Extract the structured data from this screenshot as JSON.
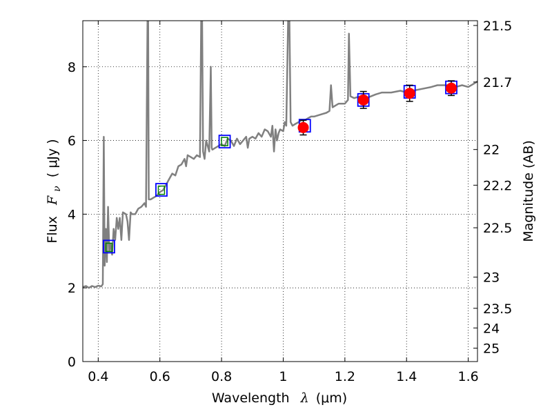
{
  "chart_data": {
    "type": "line",
    "title": "",
    "xlabel": {
      "text": "Wavelength",
      "math": "λ",
      "unit": "(μm)"
    },
    "ylabel": {
      "text": "Flux",
      "math": "F",
      "sub": "ν",
      "unit": "( μJy )"
    },
    "y2label": "Magnitude (AB)",
    "xlim": [
      0.35,
      1.63
    ],
    "ylim": [
      0,
      9.25
    ],
    "grid": true,
    "x_ticks": [
      {
        "value": 0.4,
        "label": "0.4"
      },
      {
        "value": 0.6,
        "label": "0.6"
      },
      {
        "value": 0.8,
        "label": "0.8"
      },
      {
        "value": 1.0,
        "label": "1"
      },
      {
        "value": 1.2,
        "label": "1.2"
      },
      {
        "value": 1.4,
        "label": "1.4"
      },
      {
        "value": 1.6,
        "label": "1.6"
      }
    ],
    "y_ticks": [
      {
        "value": 0,
        "label": "0"
      },
      {
        "value": 2,
        "label": "2"
      },
      {
        "value": 4,
        "label": "4"
      },
      {
        "value": 6,
        "label": "6"
      },
      {
        "value": 8,
        "label": "8"
      }
    ],
    "y2_ticks": [
      {
        "value": 21.5,
        "label": "21.5"
      },
      {
        "value": 21.7,
        "label": "21.7"
      },
      {
        "value": 22.0,
        "label": "22"
      },
      {
        "value": 22.2,
        "label": "22.2"
      },
      {
        "value": 22.5,
        "label": "22.5"
      },
      {
        "value": 23.0,
        "label": "23"
      },
      {
        "value": 23.5,
        "label": "23.5"
      },
      {
        "value": 24.0,
        "label": "24"
      },
      {
        "value": 25.0,
        "label": "25"
      }
    ],
    "series": [
      {
        "kind": "spectrum",
        "color": "#808080",
        "points": [
          [
            0.35,
            2.02
          ],
          [
            0.36,
            2.05
          ],
          [
            0.37,
            2.0
          ],
          [
            0.38,
            2.05
          ],
          [
            0.39,
            2.02
          ],
          [
            0.4,
            2.06
          ],
          [
            0.41,
            2.04
          ],
          [
            0.415,
            2.1
          ],
          [
            0.418,
            6.1
          ],
          [
            0.421,
            2.6
          ],
          [
            0.425,
            3.6
          ],
          [
            0.428,
            2.7
          ],
          [
            0.432,
            4.2
          ],
          [
            0.436,
            3.0
          ],
          [
            0.44,
            3.2
          ],
          [
            0.445,
            2.9
          ],
          [
            0.45,
            3.6
          ],
          [
            0.455,
            3.3
          ],
          [
            0.46,
            3.9
          ],
          [
            0.465,
            3.6
          ],
          [
            0.47,
            3.9
          ],
          [
            0.475,
            3.3
          ],
          [
            0.48,
            4.05
          ],
          [
            0.49,
            4.0
          ],
          [
            0.495,
            3.8
          ],
          [
            0.5,
            3.3
          ],
          [
            0.505,
            4.05
          ],
          [
            0.51,
            4.0
          ],
          [
            0.52,
            4.0
          ],
          [
            0.53,
            4.15
          ],
          [
            0.54,
            4.2
          ],
          [
            0.55,
            4.3
          ],
          [
            0.555,
            4.2
          ],
          [
            0.56,
            9.3
          ],
          [
            0.562,
            9.3
          ],
          [
            0.564,
            4.4
          ],
          [
            0.57,
            4.4
          ],
          [
            0.58,
            4.45
          ],
          [
            0.59,
            4.5
          ],
          [
            0.6,
            4.6
          ],
          [
            0.61,
            4.65
          ],
          [
            0.62,
            4.8
          ],
          [
            0.63,
            4.95
          ],
          [
            0.64,
            5.1
          ],
          [
            0.65,
            5.05
          ],
          [
            0.66,
            5.3
          ],
          [
            0.67,
            5.35
          ],
          [
            0.68,
            5.5
          ],
          [
            0.685,
            5.3
          ],
          [
            0.69,
            5.6
          ],
          [
            0.7,
            5.55
          ],
          [
            0.71,
            5.5
          ],
          [
            0.72,
            5.6
          ],
          [
            0.73,
            5.55
          ],
          [
            0.734,
            9.3
          ],
          [
            0.737,
            9.3
          ],
          [
            0.74,
            5.7
          ],
          [
            0.745,
            5.5
          ],
          [
            0.75,
            6.0
          ],
          [
            0.76,
            5.7
          ],
          [
            0.765,
            8.0
          ],
          [
            0.768,
            5.8
          ],
          [
            0.77,
            5.75
          ],
          [
            0.78,
            5.8
          ],
          [
            0.79,
            5.85
          ],
          [
            0.8,
            5.9
          ],
          [
            0.81,
            5.85
          ],
          [
            0.82,
            6.05
          ],
          [
            0.83,
            6.0
          ],
          [
            0.84,
            5.85
          ],
          [
            0.85,
            6.05
          ],
          [
            0.86,
            5.9
          ],
          [
            0.87,
            6.0
          ],
          [
            0.88,
            6.1
          ],
          [
            0.885,
            5.8
          ],
          [
            0.89,
            6.05
          ],
          [
            0.9,
            6.1
          ],
          [
            0.91,
            6.05
          ],
          [
            0.92,
            6.2
          ],
          [
            0.93,
            6.1
          ],
          [
            0.94,
            6.3
          ],
          [
            0.95,
            6.25
          ],
          [
            0.96,
            6.1
          ],
          [
            0.965,
            6.4
          ],
          [
            0.97,
            5.7
          ],
          [
            0.975,
            6.3
          ],
          [
            0.98,
            6.0
          ],
          [
            0.985,
            6.2
          ],
          [
            0.99,
            6.3
          ],
          [
            1.0,
            6.25
          ],
          [
            1.005,
            6.5
          ],
          [
            1.01,
            6.4
          ],
          [
            1.016,
            9.3
          ],
          [
            1.02,
            9.3
          ],
          [
            1.024,
            6.5
          ],
          [
            1.03,
            6.4
          ],
          [
            1.04,
            6.45
          ],
          [
            1.05,
            6.5
          ],
          [
            1.06,
            6.55
          ],
          [
            1.07,
            6.55
          ],
          [
            1.08,
            6.6
          ],
          [
            1.09,
            6.65
          ],
          [
            1.1,
            6.65
          ],
          [
            1.12,
            6.7
          ],
          [
            1.14,
            6.75
          ],
          [
            1.15,
            6.8
          ],
          [
            1.155,
            7.5
          ],
          [
            1.16,
            6.9
          ],
          [
            1.17,
            6.95
          ],
          [
            1.18,
            7.0
          ],
          [
            1.19,
            7.0
          ],
          [
            1.2,
            7.0
          ],
          [
            1.21,
            7.1
          ],
          [
            1.213,
            8.9
          ],
          [
            1.218,
            7.2
          ],
          [
            1.23,
            7.15
          ],
          [
            1.25,
            7.2
          ],
          [
            1.27,
            7.15
          ],
          [
            1.3,
            7.25
          ],
          [
            1.32,
            7.3
          ],
          [
            1.35,
            7.3
          ],
          [
            1.38,
            7.35
          ],
          [
            1.4,
            7.3
          ],
          [
            1.42,
            7.35
          ],
          [
            1.45,
            7.4
          ],
          [
            1.48,
            7.45
          ],
          [
            1.5,
            7.5
          ],
          [
            1.53,
            7.5
          ],
          [
            1.56,
            7.45
          ],
          [
            1.58,
            7.5
          ],
          [
            1.6,
            7.45
          ],
          [
            1.62,
            7.55
          ],
          [
            1.63,
            7.6
          ]
        ]
      },
      {
        "kind": "model_photometry",
        "marker": "square",
        "edgecolor": "#0000ff",
        "points": [
          [
            0.435,
            3.12
          ],
          [
            0.605,
            4.66
          ],
          [
            0.81,
            5.97
          ],
          [
            1.07,
            6.4
          ],
          [
            1.26,
            7.1
          ],
          [
            1.41,
            7.32
          ],
          [
            1.545,
            7.44
          ]
        ]
      },
      {
        "kind": "observed_bands",
        "marker": "square",
        "edgecolor": "#008000",
        "points": [
          [
            0.435,
            3.1
          ],
          [
            0.605,
            4.65
          ],
          [
            0.81,
            5.97
          ]
        ]
      },
      {
        "kind": "observed_photometry",
        "marker": "circle",
        "color": "#ff0000",
        "points": [
          {
            "x": 1.065,
            "y": 6.35,
            "err": 0.2
          },
          {
            "x": 1.26,
            "y": 7.1,
            "err": 0.23
          },
          {
            "x": 1.41,
            "y": 7.28,
            "err": 0.22
          },
          {
            "x": 1.545,
            "y": 7.42,
            "err": 0.2
          }
        ]
      }
    ]
  }
}
